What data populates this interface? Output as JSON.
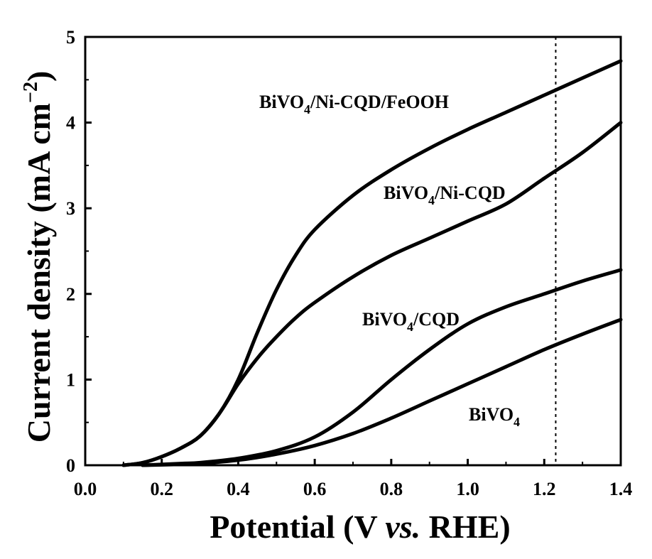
{
  "chart_data": {
    "type": "line",
    "title": "",
    "xlabel": {
      "prefix": "Potential (V ",
      "italic": "vs.",
      "suffix": " RHE)"
    },
    "ylabel": {
      "main": "Current density (mA cm",
      "sup": "−2",
      "close": ")"
    },
    "xlim": [
      0.0,
      1.4
    ],
    "ylim": [
      0,
      5
    ],
    "xticks": [
      "0.0",
      "0.2",
      "0.4",
      "0.6",
      "0.8",
      "1.0",
      "1.2",
      "1.4"
    ],
    "yticks": [
      "0",
      "1",
      "2",
      "3",
      "4",
      "5"
    ],
    "vline": {
      "x": 1.23,
      "style": "dotted"
    },
    "grid": false,
    "legend": "none",
    "series": [
      {
        "name": "BiVO4/Ni-CQD/FeOOH",
        "label": {
          "pre": "BiVO",
          "sub": "4",
          "post": "/Ni-CQD/FeOOH"
        },
        "color": "#000000",
        "points": [
          [
            0.1,
            0.0
          ],
          [
            0.15,
            0.03
          ],
          [
            0.2,
            0.1
          ],
          [
            0.25,
            0.2
          ],
          [
            0.3,
            0.34
          ],
          [
            0.35,
            0.6
          ],
          [
            0.4,
            1.0
          ],
          [
            0.45,
            1.55
          ],
          [
            0.5,
            2.05
          ],
          [
            0.55,
            2.45
          ],
          [
            0.6,
            2.75
          ],
          [
            0.7,
            3.15
          ],
          [
            0.8,
            3.45
          ],
          [
            0.9,
            3.7
          ],
          [
            1.0,
            3.92
          ],
          [
            1.1,
            4.12
          ],
          [
            1.2,
            4.32
          ],
          [
            1.3,
            4.52
          ],
          [
            1.4,
            4.72
          ]
        ]
      },
      {
        "name": "BiVO4/Ni-CQD",
        "label": {
          "pre": "BiVO",
          "sub": "4",
          "post": "/Ni-CQD"
        },
        "color": "#000000",
        "points": [
          [
            0.1,
            0.0
          ],
          [
            0.15,
            0.03
          ],
          [
            0.2,
            0.1
          ],
          [
            0.25,
            0.2
          ],
          [
            0.3,
            0.34
          ],
          [
            0.35,
            0.6
          ],
          [
            0.4,
            0.95
          ],
          [
            0.45,
            1.25
          ],
          [
            0.5,
            1.5
          ],
          [
            0.55,
            1.72
          ],
          [
            0.6,
            1.9
          ],
          [
            0.7,
            2.2
          ],
          [
            0.8,
            2.45
          ],
          [
            0.9,
            2.65
          ],
          [
            1.0,
            2.85
          ],
          [
            1.1,
            3.05
          ],
          [
            1.2,
            3.35
          ],
          [
            1.3,
            3.65
          ],
          [
            1.4,
            4.0
          ]
        ]
      },
      {
        "name": "BiVO4/CQD",
        "label": {
          "pre": "BiVO",
          "sub": "4",
          "post": "/CQD"
        },
        "color": "#000000",
        "points": [
          [
            0.15,
            0.0
          ],
          [
            0.25,
            0.02
          ],
          [
            0.3,
            0.03
          ],
          [
            0.4,
            0.08
          ],
          [
            0.5,
            0.17
          ],
          [
            0.6,
            0.33
          ],
          [
            0.7,
            0.62
          ],
          [
            0.8,
            1.0
          ],
          [
            0.9,
            1.35
          ],
          [
            1.0,
            1.65
          ],
          [
            1.1,
            1.85
          ],
          [
            1.2,
            2.0
          ],
          [
            1.3,
            2.15
          ],
          [
            1.4,
            2.28
          ]
        ]
      },
      {
        "name": "BiVO4",
        "label": {
          "pre": "BiVO",
          "sub": "4",
          "post": ""
        },
        "color": "#000000",
        "points": [
          [
            0.15,
            0.0
          ],
          [
            0.25,
            0.01
          ],
          [
            0.3,
            0.02
          ],
          [
            0.4,
            0.06
          ],
          [
            0.5,
            0.13
          ],
          [
            0.6,
            0.23
          ],
          [
            0.7,
            0.37
          ],
          [
            0.8,
            0.55
          ],
          [
            0.9,
            0.75
          ],
          [
            1.0,
            0.95
          ],
          [
            1.1,
            1.15
          ],
          [
            1.2,
            1.35
          ],
          [
            1.3,
            1.53
          ],
          [
            1.4,
            1.7
          ]
        ]
      }
    ]
  }
}
